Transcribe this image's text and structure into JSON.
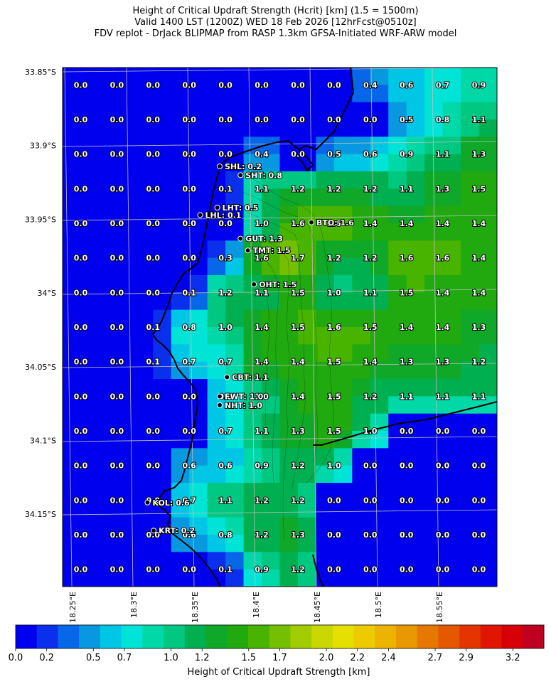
{
  "header": {
    "line1": "Height of Critical Updraft Strength (Hcrit) [km] (1.5 = 1500m)",
    "line2": "Valid 1400 LST (1200Z) WED 18 Feb 2026 [12hrFcst@0510z]",
    "line3": "FDV replot - DrJack BLIPMAP from RASP 1.3km GFSA-Initiated WRF-ARW model"
  },
  "chart_data": {
    "type": "heatmap",
    "title": "Height of Critical Updraft Strength (Hcrit) [km] (1.5 = 1500m)",
    "y_tick_labels": [
      "33.85°S",
      "33.9°S",
      "33.95°S",
      "34°S",
      "34.05°S",
      "34.1°S",
      "34.15°S"
    ],
    "x_tick_labels": [
      "18.25°E",
      "18.3°E",
      "18.35°E",
      "18.4°E",
      "18.45°E",
      "18.5°E",
      "18.55°E"
    ],
    "grid_values": [
      [
        "0.0",
        "0.0",
        "0.0",
        "0.0",
        "0.0",
        "0.0",
        "0.0",
        "0.0",
        "0.4",
        "0.6",
        "0.7",
        "0.9"
      ],
      [
        "0.0",
        "0.0",
        "0.0",
        "0.0",
        "0.0",
        "0.0",
        "0.0",
        "0.0",
        "0.0",
        "0.5",
        "0.8",
        "1.1"
      ],
      [
        "0.0",
        "0.0",
        "0.0",
        "0.0",
        "0.0",
        "0.4",
        "0.0",
        "0.5",
        "0.6",
        "0.9",
        "1.1",
        "1.3"
      ],
      [
        "0.0",
        "0.0",
        "0.0",
        "0.0",
        "0.1",
        "1.1",
        "1.2",
        "1.2",
        "1.2",
        "1.1",
        "1.3",
        "1.5"
      ],
      [
        "0.0",
        "0.0",
        "0.0",
        "0.0",
        "0.0",
        "1.0",
        "1.6",
        "1.6",
        "1.4",
        "1.4",
        "1.4",
        "1.4"
      ],
      [
        "0.0",
        "0.0",
        "0.0",
        "0.0",
        "0.3",
        "1.6",
        "1.7",
        "1.2",
        "1.2",
        "1.6",
        "1.6",
        "1.4"
      ],
      [
        "0.0",
        "0.0",
        "0.0",
        "0.1",
        "1.2",
        "1.1",
        "1.5",
        "1.0",
        "1.1",
        "1.5",
        "1.4",
        "1.4"
      ],
      [
        "0.0",
        "0.0",
        "0.1",
        "0.8",
        "1.0",
        "1.4",
        "1.5",
        "1.6",
        "1.5",
        "1.4",
        "1.4",
        "1.3"
      ],
      [
        "0.0",
        "0.0",
        "0.1",
        "0.7",
        "0.7",
        "1.4",
        "1.4",
        "1.5",
        "1.4",
        "1.3",
        "1.3",
        "1.2"
      ],
      [
        "0.0",
        "0.0",
        "0.0",
        "0.0",
        "0.8",
        "1.0",
        "1.4",
        "1.5",
        "1.2",
        "1.1",
        "1.1",
        "1.1"
      ],
      [
        "0.0",
        "0.0",
        "0.0",
        "0.0",
        "0.7",
        "1.1",
        "1.3",
        "1.5",
        "1.0",
        "0.0",
        "0.0",
        "0.0"
      ],
      [
        "0.0",
        "0.0",
        "0.0",
        "0.6",
        "0.6",
        "0.9",
        "1.2",
        "1.0",
        "0.0",
        "0.0",
        "0.0",
        "0.0"
      ],
      [
        "0.0",
        "0.0",
        "0.0",
        "0.7",
        "1.1",
        "1.2",
        "1.2",
        "0.0",
        "0.0",
        "0.0",
        "0.0",
        "0.0"
      ],
      [
        "0.0",
        "0.0",
        "0.0",
        "0.6",
        "0.8",
        "1.2",
        "1.3",
        "0.0",
        "0.0",
        "0.0",
        "0.0",
        "0.0"
      ],
      [
        "0.0",
        "0.0",
        "0.0",
        "0.0",
        "0.1",
        "0.9",
        "1.2",
        "0.0",
        "0.0",
        "0.0",
        "0.0",
        "0.0"
      ]
    ],
    "stations": [
      {
        "label": "SHL: 0.2",
        "lon": 18.372,
        "lat": -33.909
      },
      {
        "label": "SHT: 0.8",
        "lon": 18.389,
        "lat": -33.915
      },
      {
        "label": "LHT: 0.5",
        "lon": 18.37,
        "lat": -33.937
      },
      {
        "label": "LHL: 0.1",
        "lon": 18.356,
        "lat": -33.942
      },
      {
        "label": "BTO: 1.6",
        "lon": 18.447,
        "lat": -33.947
      },
      {
        "label": "GUT: 1.3",
        "lon": 18.389,
        "lat": -33.958
      },
      {
        "label": "TMT: 1.5",
        "lon": 18.395,
        "lat": -33.966
      },
      {
        "label": "OHT: 1.5",
        "lon": 18.4,
        "lat": -33.989
      },
      {
        "label": "CBT: 1.1",
        "lon": 18.378,
        "lat": -34.052
      },
      {
        "label": "FWT: 1.0",
        "lon": 18.372,
        "lat": -34.065
      },
      {
        "label": "NHT: 1.0",
        "lon": 18.372,
        "lat": -34.071
      },
      {
        "label": "KOL: 0.6",
        "lon": 18.313,
        "lat": -34.137
      },
      {
        "label": "KRT: 0.2",
        "lon": 18.318,
        "lat": -34.156
      }
    ],
    "colorbar": {
      "label": "Height of Critical Updraft Strength [km]",
      "tick_labels": [
        "0.0",
        "0.2",
        "0.5",
        "0.7",
        "1.0",
        "1.2",
        "1.5",
        "1.7",
        "2.0",
        "2.2",
        "2.4",
        "2.7",
        "2.9",
        "3.2"
      ],
      "range": [
        0,
        3.4
      ],
      "colors": [
        "#0000ee",
        "#0a30ee",
        "#0866e8",
        "#0898e0",
        "#00c6e6",
        "#00e4d8",
        "#00d8a8",
        "#00c880",
        "#00b050",
        "#10a828",
        "#20aa10",
        "#48b400",
        "#74c000",
        "#a0cc00",
        "#c8d800",
        "#e6e000",
        "#eccc00",
        "#ecb400",
        "#e89800",
        "#e67800",
        "#e45800",
        "#e43400",
        "#e01600",
        "#d80008",
        "#c00020"
      ]
    }
  }
}
